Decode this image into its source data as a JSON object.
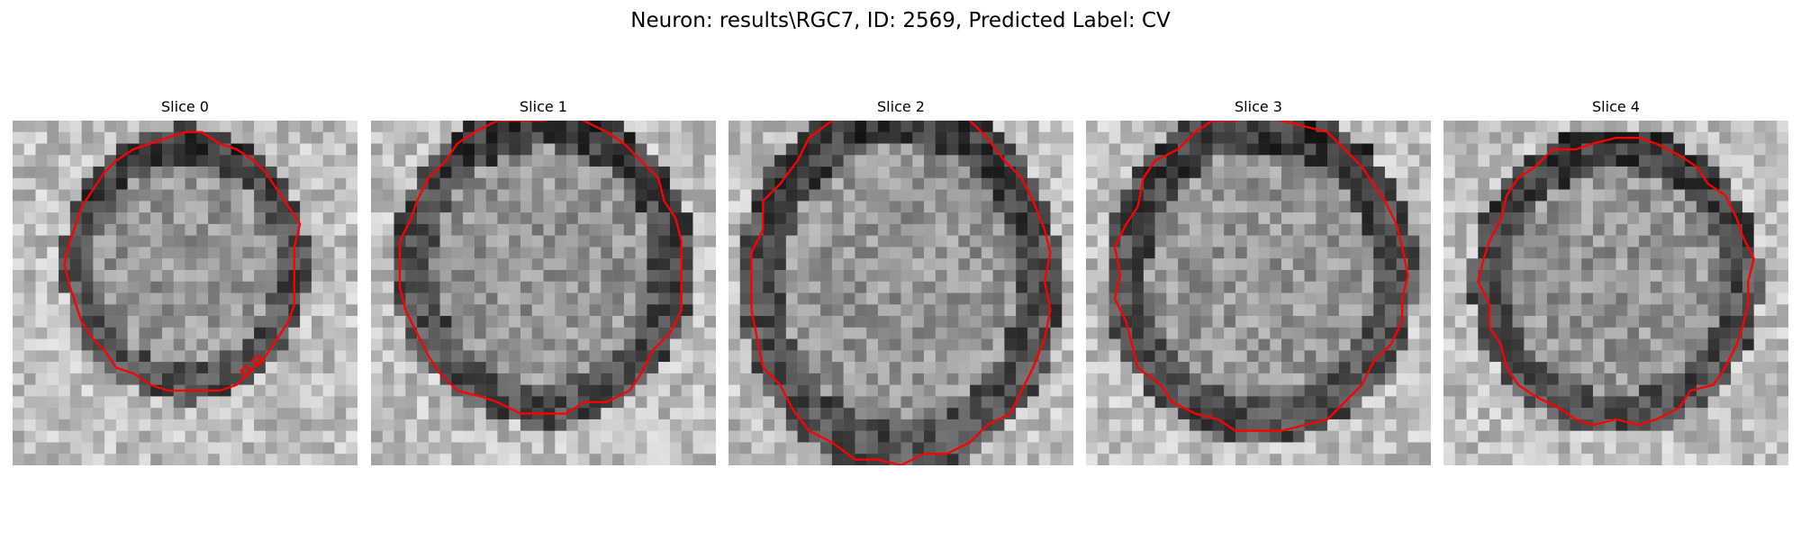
{
  "figure": {
    "title": "Neuron: results\\RGC7, ID: 2569, Predicted Label: CV",
    "grid_size": 30,
    "contour_color": "#ff0000",
    "colormap": "grayscale",
    "panels": [
      {
        "label": "Slice 0",
        "seed": 11,
        "contour": {
          "cx": 15.0,
          "cy": 12.5,
          "rx": 10.0,
          "ry": 11.2,
          "partial": false
        }
      },
      {
        "label": "Slice 1",
        "seed": 23,
        "contour": {
          "cx": 14.9,
          "cy": 12.6,
          "rx": 12.2,
          "ry": 13.0,
          "partial": true
        }
      },
      {
        "label": "Slice 2",
        "seed": 37,
        "contour": {
          "cx": 14.9,
          "cy": 14.2,
          "rx": 13.0,
          "ry": 15.5,
          "partial": true
        }
      },
      {
        "label": "Slice 3",
        "seed": 41,
        "contour": {
          "cx": 15.2,
          "cy": 13.3,
          "rx": 12.6,
          "ry": 13.7,
          "partial": true
        }
      },
      {
        "label": "Slice 4",
        "seed": 53,
        "contour": {
          "cx": 15.0,
          "cy": 14.0,
          "rx": 11.7,
          "ry": 12.4,
          "partial": false
        }
      }
    ]
  }
}
